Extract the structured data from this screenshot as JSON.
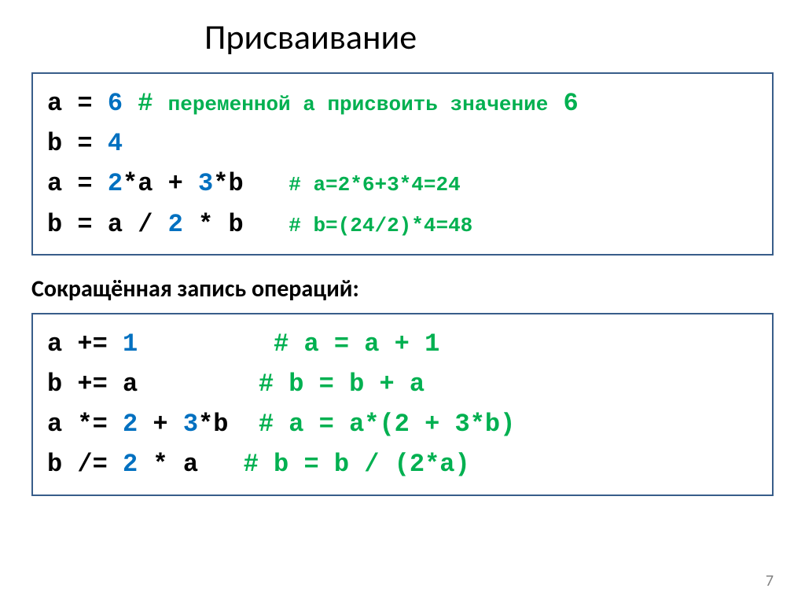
{
  "title": "Присваивание",
  "box1": {
    "line1": {
      "code_pre": "a = ",
      "num": "6",
      "comment_pre": " # ",
      "comment_middle": "переменной a присвоить значение",
      "comment_num": " 6"
    },
    "line2": {
      "code_pre": "b = ",
      "num": "4"
    },
    "line3": {
      "code1": "a = ",
      "num1": "2",
      "code2": "*a + ",
      "num2": "3",
      "code3": "*b   ",
      "comment": "# a=2*6+3*4=24"
    },
    "line4": {
      "code1": "b = a / ",
      "num1": "2",
      "code2": " * b   ",
      "comment": "# b=(24/2)*4=48"
    }
  },
  "subtitle": "Сокращённая запись операций:",
  "box2": {
    "line1": {
      "code1": "a += ",
      "num1": "1",
      "pad": "         ",
      "comment": "# a = a + 1"
    },
    "line2": {
      "code1": "b += a        ",
      "comment": "# b = b + a"
    },
    "line3": {
      "code1": "a *= ",
      "num1": "2",
      "code2": " + ",
      "num2": "3",
      "code3": "*b  ",
      "comment": "# a = a*(2 + 3*b)"
    },
    "line4": {
      "code1": "b /= ",
      "num1": "2",
      "code2": " * a   ",
      "comment": "# b = b / (2*a)"
    }
  },
  "pagenum": "7",
  "colors": {
    "border": "#385d8a",
    "number": "#0070c0",
    "comment": "#00b050",
    "text": "#000000",
    "bg": "#ffffff"
  }
}
